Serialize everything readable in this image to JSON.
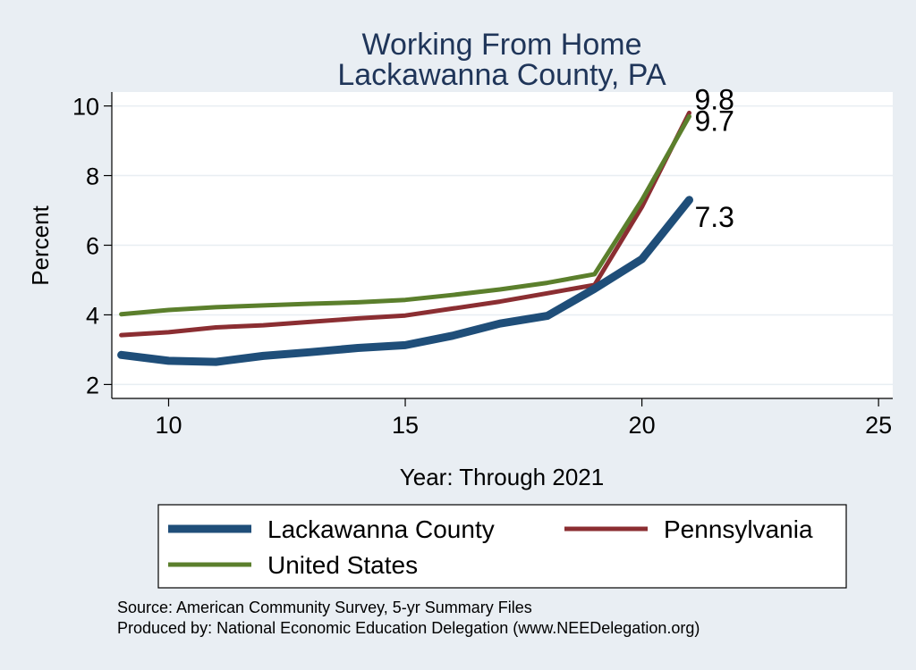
{
  "chart_data": {
    "type": "line",
    "title": [
      "Working From Home",
      "Lackawanna County, PA"
    ],
    "xlabel": "Year: Through 2021",
    "ylabel": "Percent",
    "xlim": [
      8.8,
      25.3
    ],
    "ylim": [
      1.6,
      10.4
    ],
    "xticks": [
      10,
      15,
      20,
      25
    ],
    "yticks": [
      2,
      4,
      6,
      8,
      10
    ],
    "grid": "horizontal",
    "series": [
      {
        "name": "Lackawanna County",
        "color": "#1f4e79",
        "width": "thick",
        "x": [
          9,
          10,
          11,
          12,
          13,
          14,
          15,
          16,
          17,
          18,
          19,
          20,
          21
        ],
        "y": [
          2.85,
          2.68,
          2.65,
          2.82,
          2.93,
          3.05,
          3.13,
          3.4,
          3.75,
          3.97,
          4.75,
          5.6,
          7.3
        ],
        "end_label": "7.3"
      },
      {
        "name": "Pennsylvania",
        "color": "#8b2e32",
        "width": "medium",
        "x": [
          9,
          10,
          11,
          12,
          13,
          14,
          15,
          16,
          17,
          18,
          19,
          20,
          21
        ],
        "y": [
          3.42,
          3.5,
          3.64,
          3.7,
          3.8,
          3.9,
          3.98,
          4.18,
          4.38,
          4.62,
          4.86,
          7.1,
          9.8
        ],
        "end_label": "9.8"
      },
      {
        "name": "United States",
        "color": "#5b7f2c",
        "width": "medium",
        "x": [
          9,
          10,
          11,
          12,
          13,
          14,
          15,
          16,
          17,
          18,
          19,
          20,
          21
        ],
        "y": [
          4.02,
          4.14,
          4.22,
          4.27,
          4.32,
          4.36,
          4.43,
          4.57,
          4.73,
          4.92,
          5.17,
          7.3,
          9.7
        ],
        "end_label": "9.7"
      }
    ],
    "legend": {
      "position": "bottom",
      "entries": [
        "Lackawanna County",
        "Pennsylvania",
        "United States"
      ]
    },
    "notes": [
      "Source: American Community Survey, 5-yr Summary Files",
      "Produced by: National Economic Education Delegation (www.NEEDelegation.org)"
    ],
    "colors": {
      "background": "#e9eef3",
      "plot_area": "#ffffff",
      "title": "#1f3559",
      "grid": "#e8eef2"
    }
  }
}
